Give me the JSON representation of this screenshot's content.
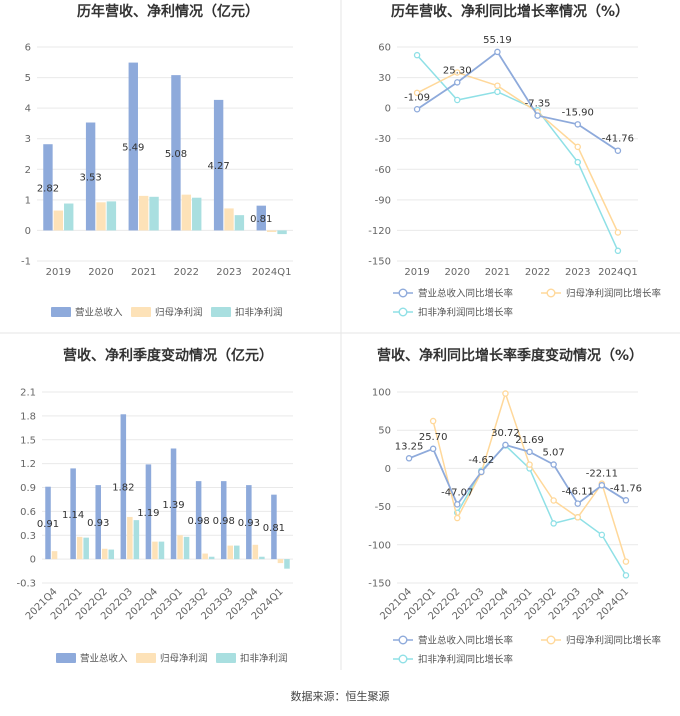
{
  "colors": {
    "revenue": "#8eaadb",
    "net_profit": "#fde2b8",
    "deducted": "#a9dfe0",
    "line_revenue": "#8eaadb",
    "line_net_profit": "#ffd89a",
    "line_deducted": "#8fe0e6",
    "grid": "#e9e9e9",
    "divider": "#e5e5e5"
  },
  "source": "数据来源：恒生聚源",
  "chart_data": [
    {
      "id": "annual-bar",
      "type": "bar",
      "title": "历年营收、净利情况（亿元）",
      "categories": [
        "2019",
        "2020",
        "2021",
        "2022",
        "2023",
        "2024Q1"
      ],
      "ylim": [
        -1,
        6
      ],
      "yticks": [
        "6",
        "5",
        "4",
        "3",
        "2",
        "1",
        "0",
        "-1"
      ],
      "series": [
        {
          "name": "营业总收入",
          "values": [
            2.82,
            3.53,
            5.49,
            5.08,
            4.27,
            0.81
          ]
        },
        {
          "name": "归母净利润",
          "values": [
            0.65,
            0.92,
            1.13,
            1.17,
            0.72,
            -0.05
          ]
        },
        {
          "name": "扣非净利润",
          "values": [
            0.88,
            0.95,
            1.1,
            1.07,
            0.5,
            -0.12
          ]
        }
      ],
      "data_labels": [
        "2.82",
        "3.53",
        "5.49",
        "5.08",
        "4.27",
        "0.81"
      ]
    },
    {
      "id": "annual-line",
      "type": "line",
      "title": "历年营收、净利同比增长率情况（%）",
      "categories": [
        "2019",
        "2020",
        "2021",
        "2022",
        "2023",
        "2024Q1"
      ],
      "ylim": [
        -150,
        60
      ],
      "yticks": [
        "60",
        "30",
        "0",
        "-30",
        "-60",
        "-90",
        "-120",
        "-150"
      ],
      "series": [
        {
          "name": "营业总收入同比增长率",
          "values": [
            -1.09,
            25.3,
            55.19,
            -7.35,
            -15.9,
            -41.76
          ]
        },
        {
          "name": "归母净利润同比增长率",
          "values": [
            15.0,
            35.0,
            22.0,
            -4.0,
            -38.0,
            -122.0
          ]
        },
        {
          "name": "扣非净利润同比增长率",
          "values": [
            52.0,
            8.0,
            16.0,
            -2.0,
            -53.0,
            -140.0
          ]
        }
      ],
      "data_labels": [
        "-1.09",
        "25.30",
        "55.19",
        "-7.35",
        "-15.90",
        "-41.76"
      ]
    },
    {
      "id": "quarter-bar",
      "type": "bar",
      "title": "营收、净利季度变动情况（亿元）",
      "categories": [
        "2021Q4",
        "2022Q1",
        "2022Q2",
        "2022Q3",
        "2022Q4",
        "2023Q1",
        "2023Q2",
        "2023Q3",
        "2023Q4",
        "2024Q1"
      ],
      "ylim": [
        -0.3,
        2.1
      ],
      "yticks": [
        "2.1",
        "1.8",
        "1.5",
        "1.2",
        "0.9",
        "0.6",
        "0.3",
        "0",
        "-0.3"
      ],
      "series": [
        {
          "name": "营业总收入",
          "values": [
            0.91,
            1.14,
            0.93,
            1.82,
            1.19,
            1.39,
            0.98,
            0.98,
            0.93,
            0.81
          ]
        },
        {
          "name": "归母净利润",
          "values": [
            0.1,
            0.28,
            0.13,
            0.53,
            0.22,
            0.3,
            0.07,
            0.17,
            0.18,
            -0.05
          ]
        },
        {
          "name": "扣非净利润",
          "values": [
            0.0,
            0.27,
            0.12,
            0.49,
            0.22,
            0.28,
            0.03,
            0.17,
            0.03,
            -0.12
          ]
        }
      ],
      "data_labels": [
        "0.91",
        "1.14",
        "0.93",
        "1.82",
        "1.19",
        "1.39",
        "0.98",
        "0.98",
        "0.93",
        "0.81"
      ]
    },
    {
      "id": "quarter-line",
      "type": "line",
      "title": "营收、净利同比增长率季度变动情况（%）",
      "categories": [
        "2021Q4",
        "2022Q1",
        "2022Q2",
        "2022Q3",
        "2022Q4",
        "2023Q1",
        "2023Q2",
        "2023Q3",
        "2023Q4",
        "2024Q1"
      ],
      "ylim": [
        -150,
        100
      ],
      "yticks": [
        "100",
        "50",
        "0",
        "-50",
        "-100",
        "-150"
      ],
      "series": [
        {
          "name": "营业总收入同比增长率",
          "values": [
            13.25,
            25.7,
            -47.07,
            -4.62,
            30.72,
            21.69,
            5.07,
            -46.11,
            -22.11,
            -41.76
          ]
        },
        {
          "name": "归母净利润同比增长率",
          "values": [
            null,
            62.0,
            -65.0,
            -5.0,
            98.0,
            5.0,
            -42.0,
            -64.0,
            -20.0,
            -122.0
          ]
        },
        {
          "name": "扣非净利润同比增长率",
          "values": [
            null,
            null,
            -58.0,
            -3.0,
            30.0,
            0.0,
            -72.0,
            -64.0,
            -87.0,
            -140.0
          ]
        }
      ],
      "data_labels": [
        "13.25",
        "25.70",
        "-47.07",
        "-4.62",
        "30.72",
        "21.69",
        "5.07",
        "-46.11",
        "-22.11",
        "-41.76"
      ]
    }
  ]
}
